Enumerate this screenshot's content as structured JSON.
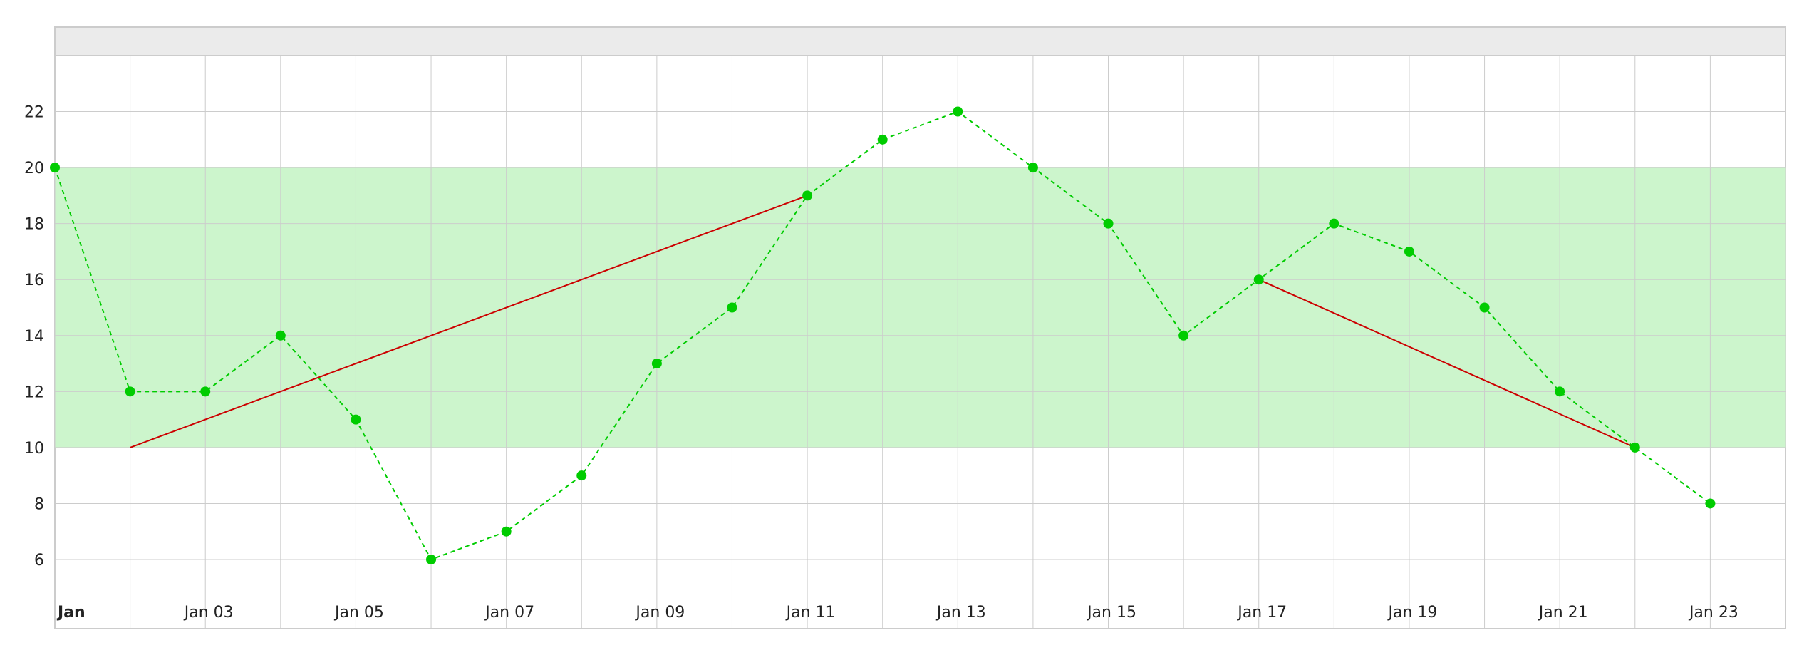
{
  "chart_data": {
    "type": "line",
    "title": "",
    "xlabel": "",
    "ylabel": "",
    "x": [
      "2000-01-01",
      "2000-01-02",
      "2000-01-03",
      "2000-01-04",
      "2000-01-05",
      "2000-01-06",
      "2000-01-07",
      "2000-01-08",
      "2000-01-09",
      "2000-01-10",
      "2000-01-11",
      "2000-01-12",
      "2000-01-13",
      "2000-01-14",
      "2000-01-15",
      "2000-01-16",
      "2000-01-17",
      "2000-01-18",
      "2000-01-19",
      "2000-01-20",
      "2000-01-21",
      "2000-01-22",
      "2000-01-23"
    ],
    "series": [
      {
        "values": [
          20,
          12,
          12,
          14,
          11,
          6,
          7,
          9,
          13,
          15,
          19,
          21,
          22,
          20,
          18,
          14,
          16,
          18,
          17,
          15,
          12,
          10,
          8
        ],
        "color": "#00cc00",
        "style": "dashed",
        "markers": true
      }
    ],
    "trend_lines": [
      {
        "from": {
          "x": "2000-01-02",
          "y": 10
        },
        "to": {
          "x": "2000-01-11",
          "y": 19
        },
        "color": "#cc0000"
      },
      {
        "from": {
          "x": "2000-01-17",
          "y": 16
        },
        "to": {
          "x": "2000-01-22",
          "y": 10
        },
        "color": "#cc0000"
      }
    ],
    "band": {
      "y_from": 10,
      "y_to": 20,
      "color": "#ccf5cc"
    },
    "ylim": [
      4.6,
      24
    ],
    "xlim": [
      "2000-01-01",
      "2000-01-24"
    ],
    "y_ticks": [
      "6",
      "8",
      "10",
      "12",
      "14",
      "16",
      "18",
      "20",
      "22"
    ],
    "x_ticks": [
      {
        "x": "2000-01-01",
        "label": "Jan",
        "major": true
      },
      {
        "x": "2000-01-03",
        "label": "Jan 03"
      },
      {
        "x": "2000-01-05",
        "label": "Jan 05"
      },
      {
        "x": "2000-01-07",
        "label": "Jan 07"
      },
      {
        "x": "2000-01-09",
        "label": "Jan 09"
      },
      {
        "x": "2000-01-11",
        "label": "Jan 11"
      },
      {
        "x": "2000-01-13",
        "label": "Jan 13"
      },
      {
        "x": "2000-01-15",
        "label": "Jan 15"
      },
      {
        "x": "2000-01-17",
        "label": "Jan 17"
      },
      {
        "x": "2000-01-19",
        "label": "Jan 19"
      },
      {
        "x": "2000-01-21",
        "label": "Jan 21"
      },
      {
        "x": "2000-01-23",
        "label": "Jan 23"
      }
    ],
    "grid": true,
    "colors": {
      "grid": "#cccccc",
      "header": "#ebebeb",
      "border": "#cccccc"
    }
  }
}
